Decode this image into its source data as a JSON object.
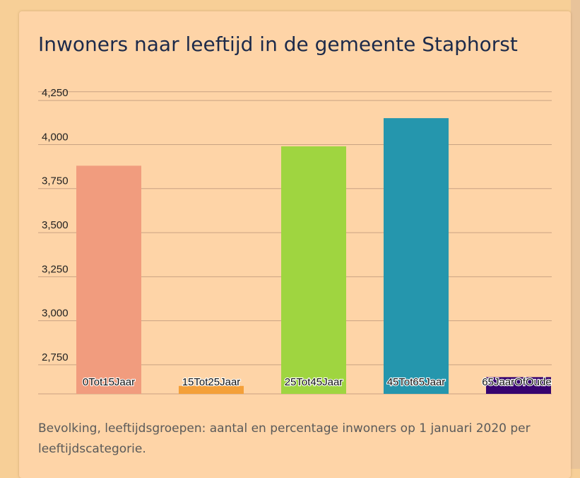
{
  "title": "Inwoners naar leeftijd in de gemeente Staphorst",
  "caption": "Bevolking, leeftijdsgroepen: aantal en percentage inwoners op 1 januari 2020 per leeftijdscategorie.",
  "chart_data": {
    "type": "bar",
    "categories": [
      "0Tot15Jaar",
      "15Tot25Jaar",
      "25Tot45Jaar",
      "45Tot65Jaar",
      "65JaarOfOuder"
    ],
    "values": [
      3880,
      2630,
      3990,
      4150,
      2680
    ],
    "colors": [
      "#f19c7e",
      "#f4a039",
      "#9fd540",
      "#2596ad",
      "#37036f"
    ],
    "yticks": [
      2750,
      3000,
      3250,
      3500,
      3750,
      4000,
      4250
    ],
    "ylim": [
      2585,
      4335
    ],
    "grid": true
  }
}
